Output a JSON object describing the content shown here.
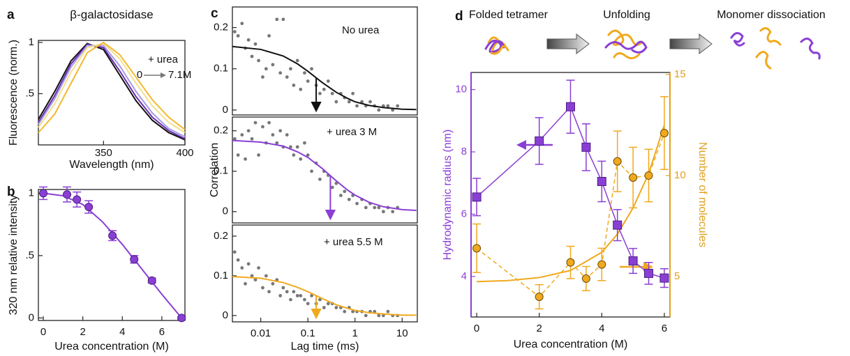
{
  "chart_data": [
    {
      "type": "line",
      "panel_label": "a",
      "title": "β-galactosidase",
      "xlabel": "Wavelength (nm)",
      "ylabel": "Fluorescence (norm.)",
      "annotations": [
        "+ urea",
        "0",
        "7.1M"
      ],
      "xlim": [
        310,
        400
      ],
      "ylim": [
        0,
        1.02
      ],
      "xticks": [
        350,
        400
      ],
      "yticks": [
        {
          "value": 0.5,
          "label": ".5"
        },
        1
      ],
      "x": [
        310,
        320,
        330,
        340,
        350,
        360,
        370,
        380,
        390,
        400
      ],
      "series": [
        {
          "mode": "line",
          "color": "#111111",
          "values": [
            0.25,
            0.52,
            0.82,
            0.99,
            0.93,
            0.68,
            0.43,
            0.24,
            0.12,
            0.05
          ]
        },
        {
          "mode": "line",
          "color": "#6a2fb0",
          "values": [
            0.22,
            0.48,
            0.79,
            0.98,
            0.95,
            0.72,
            0.47,
            0.27,
            0.14,
            0.06
          ]
        },
        {
          "mode": "line",
          "color": "#a69be6",
          "values": [
            0.2,
            0.45,
            0.76,
            0.97,
            0.97,
            0.77,
            0.52,
            0.31,
            0.16,
            0.08
          ]
        },
        {
          "mode": "line",
          "color": "#f3e08a",
          "values": [
            0.17,
            0.4,
            0.71,
            0.95,
            0.99,
            0.84,
            0.6,
            0.38,
            0.22,
            0.12
          ]
        },
        {
          "mode": "line",
          "color": "#f2b830",
          "values": [
            0.12,
            0.3,
            0.6,
            0.9,
            1.0,
            0.88,
            0.66,
            0.44,
            0.27,
            0.15
          ]
        }
      ]
    },
    {
      "type": "scatter",
      "panel_label": "b",
      "xlabel": "Urea concentration (M)",
      "ylabel": "320 nm relative intensity",
      "xlim": [
        -0.25,
        7.17
      ],
      "ylim": [
        -0.02,
        1.03
      ],
      "xticks": [
        0,
        2,
        4,
        6
      ],
      "yticks": [
        0,
        {
          "value": 0.5,
          "label": ".5"
        },
        1
      ],
      "series": [
        {
          "mode": "line",
          "color": "#8a3fd4",
          "x": [
            0,
            1,
            2,
            3,
            4,
            5,
            6,
            7
          ],
          "values": [
            1.0,
            0.98,
            0.91,
            0.77,
            0.59,
            0.39,
            0.19,
            0.0
          ]
        },
        {
          "mode": "markers",
          "marker": "circle",
          "color": "#8a3fd4",
          "edgecolor": "#4a1f80",
          "x": [
            0,
            1.2,
            1.7,
            2.3,
            3.5,
            4.6,
            5.5,
            7
          ],
          "values": [
            1.0,
            0.99,
            0.95,
            0.89,
            0.66,
            0.47,
            0.3,
            0.0
          ],
          "errors": [
            0.05,
            0.06,
            0.06,
            0.05,
            0.04,
            0.03,
            0.02,
            0.01
          ]
        }
      ]
    },
    {
      "type": "scatter",
      "panel_label": "c",
      "xscale": "log",
      "annotations": [
        "No urea"
      ],
      "arrow_x": 0.15,
      "xlim": [
        0.0025,
        21
      ],
      "ylim": [
        -0.012,
        0.25
      ],
      "yticks": [
        0,
        0.1,
        0.2
      ],
      "series": [
        {
          "mode": "markers",
          "marker": "dot",
          "color": "#777777",
          "x": [
            0.0028,
            0.0033,
            0.004,
            0.0047,
            0.0055,
            0.0065,
            0.0077,
            0.009,
            0.011,
            0.013,
            0.015,
            0.018,
            0.022,
            0.026,
            0.03,
            0.036,
            0.043,
            0.05,
            0.06,
            0.07,
            0.085,
            0.1,
            0.12,
            0.15,
            0.18,
            0.22,
            0.27,
            0.33,
            0.4,
            0.5,
            0.6,
            0.75,
            0.9,
            1.1,
            1.4,
            1.7,
            2.1,
            2.6,
            3.2,
            4,
            5,
            6.3,
            8
          ],
          "values": [
            0.19,
            0.18,
            0.21,
            0.15,
            0.17,
            0.13,
            0.16,
            0.12,
            0.08,
            0.1,
            0.18,
            0.11,
            0.22,
            0.09,
            0.22,
            0.08,
            0.1,
            0.06,
            0.12,
            0.05,
            0.09,
            0.07,
            0.1,
            0.06,
            0.04,
            0.05,
            0.07,
            0.04,
            0.02,
            0.04,
            0.03,
            0.02,
            0.04,
            0.01,
            0.02,
            0.01,
            0.02,
            0.01,
            0.0,
            0.01,
            0.01,
            0.0,
            0.01
          ]
        },
        {
          "mode": "line",
          "color": "#111111",
          "x": [
            0.0025,
            0.01,
            0.03,
            0.06,
            0.1,
            0.2,
            0.4,
            0.7,
            1,
            2,
            4,
            10,
            20
          ],
          "values": [
            0.154,
            0.147,
            0.131,
            0.112,
            0.094,
            0.067,
            0.043,
            0.028,
            0.02,
            0.011,
            0.006,
            0.002,
            0.001
          ]
        }
      ]
    },
    {
      "type": "scatter",
      "xscale": "log",
      "ylabel": "Correlation",
      "annotations": [
        "+ urea 3 M"
      ],
      "arrow_x": 0.3,
      "xlim": [
        0.0025,
        21
      ],
      "ylim": [
        -0.028,
        0.234
      ],
      "yticks": [
        0,
        0.1,
        0.2
      ],
      "series": [
        {
          "mode": "markers",
          "marker": "dot",
          "color": "#777777",
          "x": [
            0.0028,
            0.0033,
            0.004,
            0.0047,
            0.0055,
            0.0065,
            0.0077,
            0.009,
            0.011,
            0.013,
            0.015,
            0.018,
            0.022,
            0.026,
            0.03,
            0.036,
            0.043,
            0.05,
            0.06,
            0.07,
            0.085,
            0.1,
            0.12,
            0.15,
            0.18,
            0.22,
            0.27,
            0.33,
            0.4,
            0.5,
            0.6,
            0.75,
            0.9,
            1.1,
            1.4,
            1.7,
            2.1,
            2.6,
            3.2,
            4,
            5,
            6.3,
            8
          ],
          "values": [
            0.18,
            0.14,
            0.19,
            0.13,
            0.2,
            0.18,
            0.22,
            0.14,
            0.21,
            0.17,
            0.22,
            0.19,
            0.17,
            0.2,
            0.16,
            0.19,
            0.16,
            0.14,
            0.16,
            0.13,
            0.17,
            0.14,
            0.1,
            0.12,
            0.08,
            0.1,
            0.09,
            0.06,
            0.07,
            0.04,
            0.05,
            0.03,
            0.04,
            0.02,
            0.03,
            0.01,
            0.02,
            0.01,
            0.01,
            0.0,
            0.01,
            0.0,
            0.01
          ]
        },
        {
          "mode": "line",
          "color": "#8a3fd4",
          "x": [
            0.0025,
            0.01,
            0.03,
            0.06,
            0.1,
            0.2,
            0.4,
            0.7,
            1,
            2,
            4,
            10,
            20
          ],
          "values": [
            0.176,
            0.172,
            0.162,
            0.148,
            0.134,
            0.107,
            0.076,
            0.053,
            0.041,
            0.023,
            0.012,
            0.005,
            0.003
          ]
        }
      ]
    },
    {
      "type": "scatter",
      "xscale": "log",
      "xlabel": "Lag time (ms)",
      "annotations": [
        "+ urea 5.5 M"
      ],
      "arrow_x": 0.15,
      "xlim": [
        0.0025,
        21
      ],
      "ylim": [
        -0.016,
        0.228
      ],
      "xticks": [
        0.01,
        0.1,
        1,
        10
      ],
      "yticks": [
        0,
        0.1,
        0.2
      ],
      "series": [
        {
          "mode": "markers",
          "marker": "dot",
          "color": "#777777",
          "x": [
            0.0028,
            0.0033,
            0.004,
            0.0047,
            0.0055,
            0.0065,
            0.0077,
            0.009,
            0.011,
            0.013,
            0.015,
            0.018,
            0.022,
            0.026,
            0.03,
            0.036,
            0.043,
            0.05,
            0.06,
            0.07,
            0.085,
            0.1,
            0.12,
            0.15,
            0.18,
            0.22,
            0.27,
            0.33,
            0.4,
            0.5,
            0.6,
            0.75,
            0.9,
            1.1,
            1.4,
            1.7,
            2.1,
            2.6,
            3.2,
            4,
            5,
            6.3,
            8
          ],
          "values": [
            0.16,
            0.14,
            0.12,
            0.08,
            0.13,
            0.1,
            0.09,
            0.12,
            0.07,
            0.1,
            0.06,
            0.08,
            0.09,
            0.05,
            0.07,
            0.06,
            0.04,
            0.06,
            0.05,
            0.05,
            0.04,
            0.03,
            0.05,
            0.03,
            0.04,
            0.02,
            0.03,
            0.03,
            0.02,
            0.02,
            0.01,
            0.02,
            0.01,
            0.01,
            0.01,
            0.0,
            0.01,
            0.01,
            0.0,
            0.0,
            0.01,
            0.0,
            0.0
          ]
        },
        {
          "mode": "line",
          "color": "#f0a91e",
          "x": [
            0.0025,
            0.01,
            0.03,
            0.06,
            0.1,
            0.2,
            0.4,
            0.7,
            1,
            2,
            4,
            10,
            20
          ],
          "values": [
            0.098,
            0.094,
            0.083,
            0.071,
            0.06,
            0.043,
            0.027,
            0.018,
            0.013,
            0.007,
            0.004,
            0.001,
            0.001
          ]
        }
      ]
    },
    {
      "type": "scatter",
      "panel_label": "d",
      "schematic_labels": [
        "Folded tetramer",
        "Unfolding",
        "Monomer dissociation"
      ],
      "xlabel": "Urea concentration (M)",
      "ylabel": "Hydrodynamic radius (nm)",
      "y2label": "Number of molecules",
      "ycolor": "#8a3fd4",
      "y2color": "#e0a020",
      "xlim": [
        -0.18,
        6.18
      ],
      "ylim": [
        2.7,
        10.55
      ],
      "y2lim": [
        3,
        15.1
      ],
      "xticks": [
        0,
        2,
        4,
        6
      ],
      "yticks": [
        4,
        6,
        8,
        10
      ],
      "y2ticks": [
        5,
        10,
        15
      ],
      "series": [
        {
          "mode": "line",
          "axis": "y2",
          "color": "#f0a91e",
          "x": [
            0,
            1,
            2,
            3,
            4,
            4.5,
            5,
            5.5,
            6
          ],
          "values": [
            4.75,
            4.8,
            4.95,
            5.3,
            6.2,
            7.1,
            8.4,
            10.1,
            12.5
          ]
        },
        {
          "mode": "line+markers",
          "dash": true,
          "marker": "circle",
          "axis": "y2",
          "color": "#f0a91e",
          "edgecolor": "#6b4a08",
          "x": [
            0,
            2,
            3,
            3.5,
            4,
            4.5,
            5,
            5.5,
            6
          ],
          "values": [
            6.4,
            4.0,
            5.7,
            4.9,
            5.6,
            10.7,
            9.9,
            10.0,
            12.1
          ],
          "errors": [
            1.2,
            0.6,
            0.8,
            0.6,
            0.8,
            1.5,
            1.5,
            1.3,
            1.8
          ]
        },
        {
          "mode": "line+markers",
          "marker": "square",
          "color": "#8a3fd4",
          "edgecolor": "#4a1f80",
          "x": [
            0,
            2,
            3,
            3.5,
            4,
            4.5,
            5,
            5.5,
            6
          ],
          "values": [
            6.55,
            8.35,
            9.45,
            8.15,
            7.05,
            5.65,
            4.5,
            4.1,
            3.95
          ],
          "errors": [
            0.6,
            0.75,
            0.85,
            0.75,
            0.65,
            0.5,
            0.4,
            0.35,
            0.3
          ]
        }
      ]
    }
  ]
}
